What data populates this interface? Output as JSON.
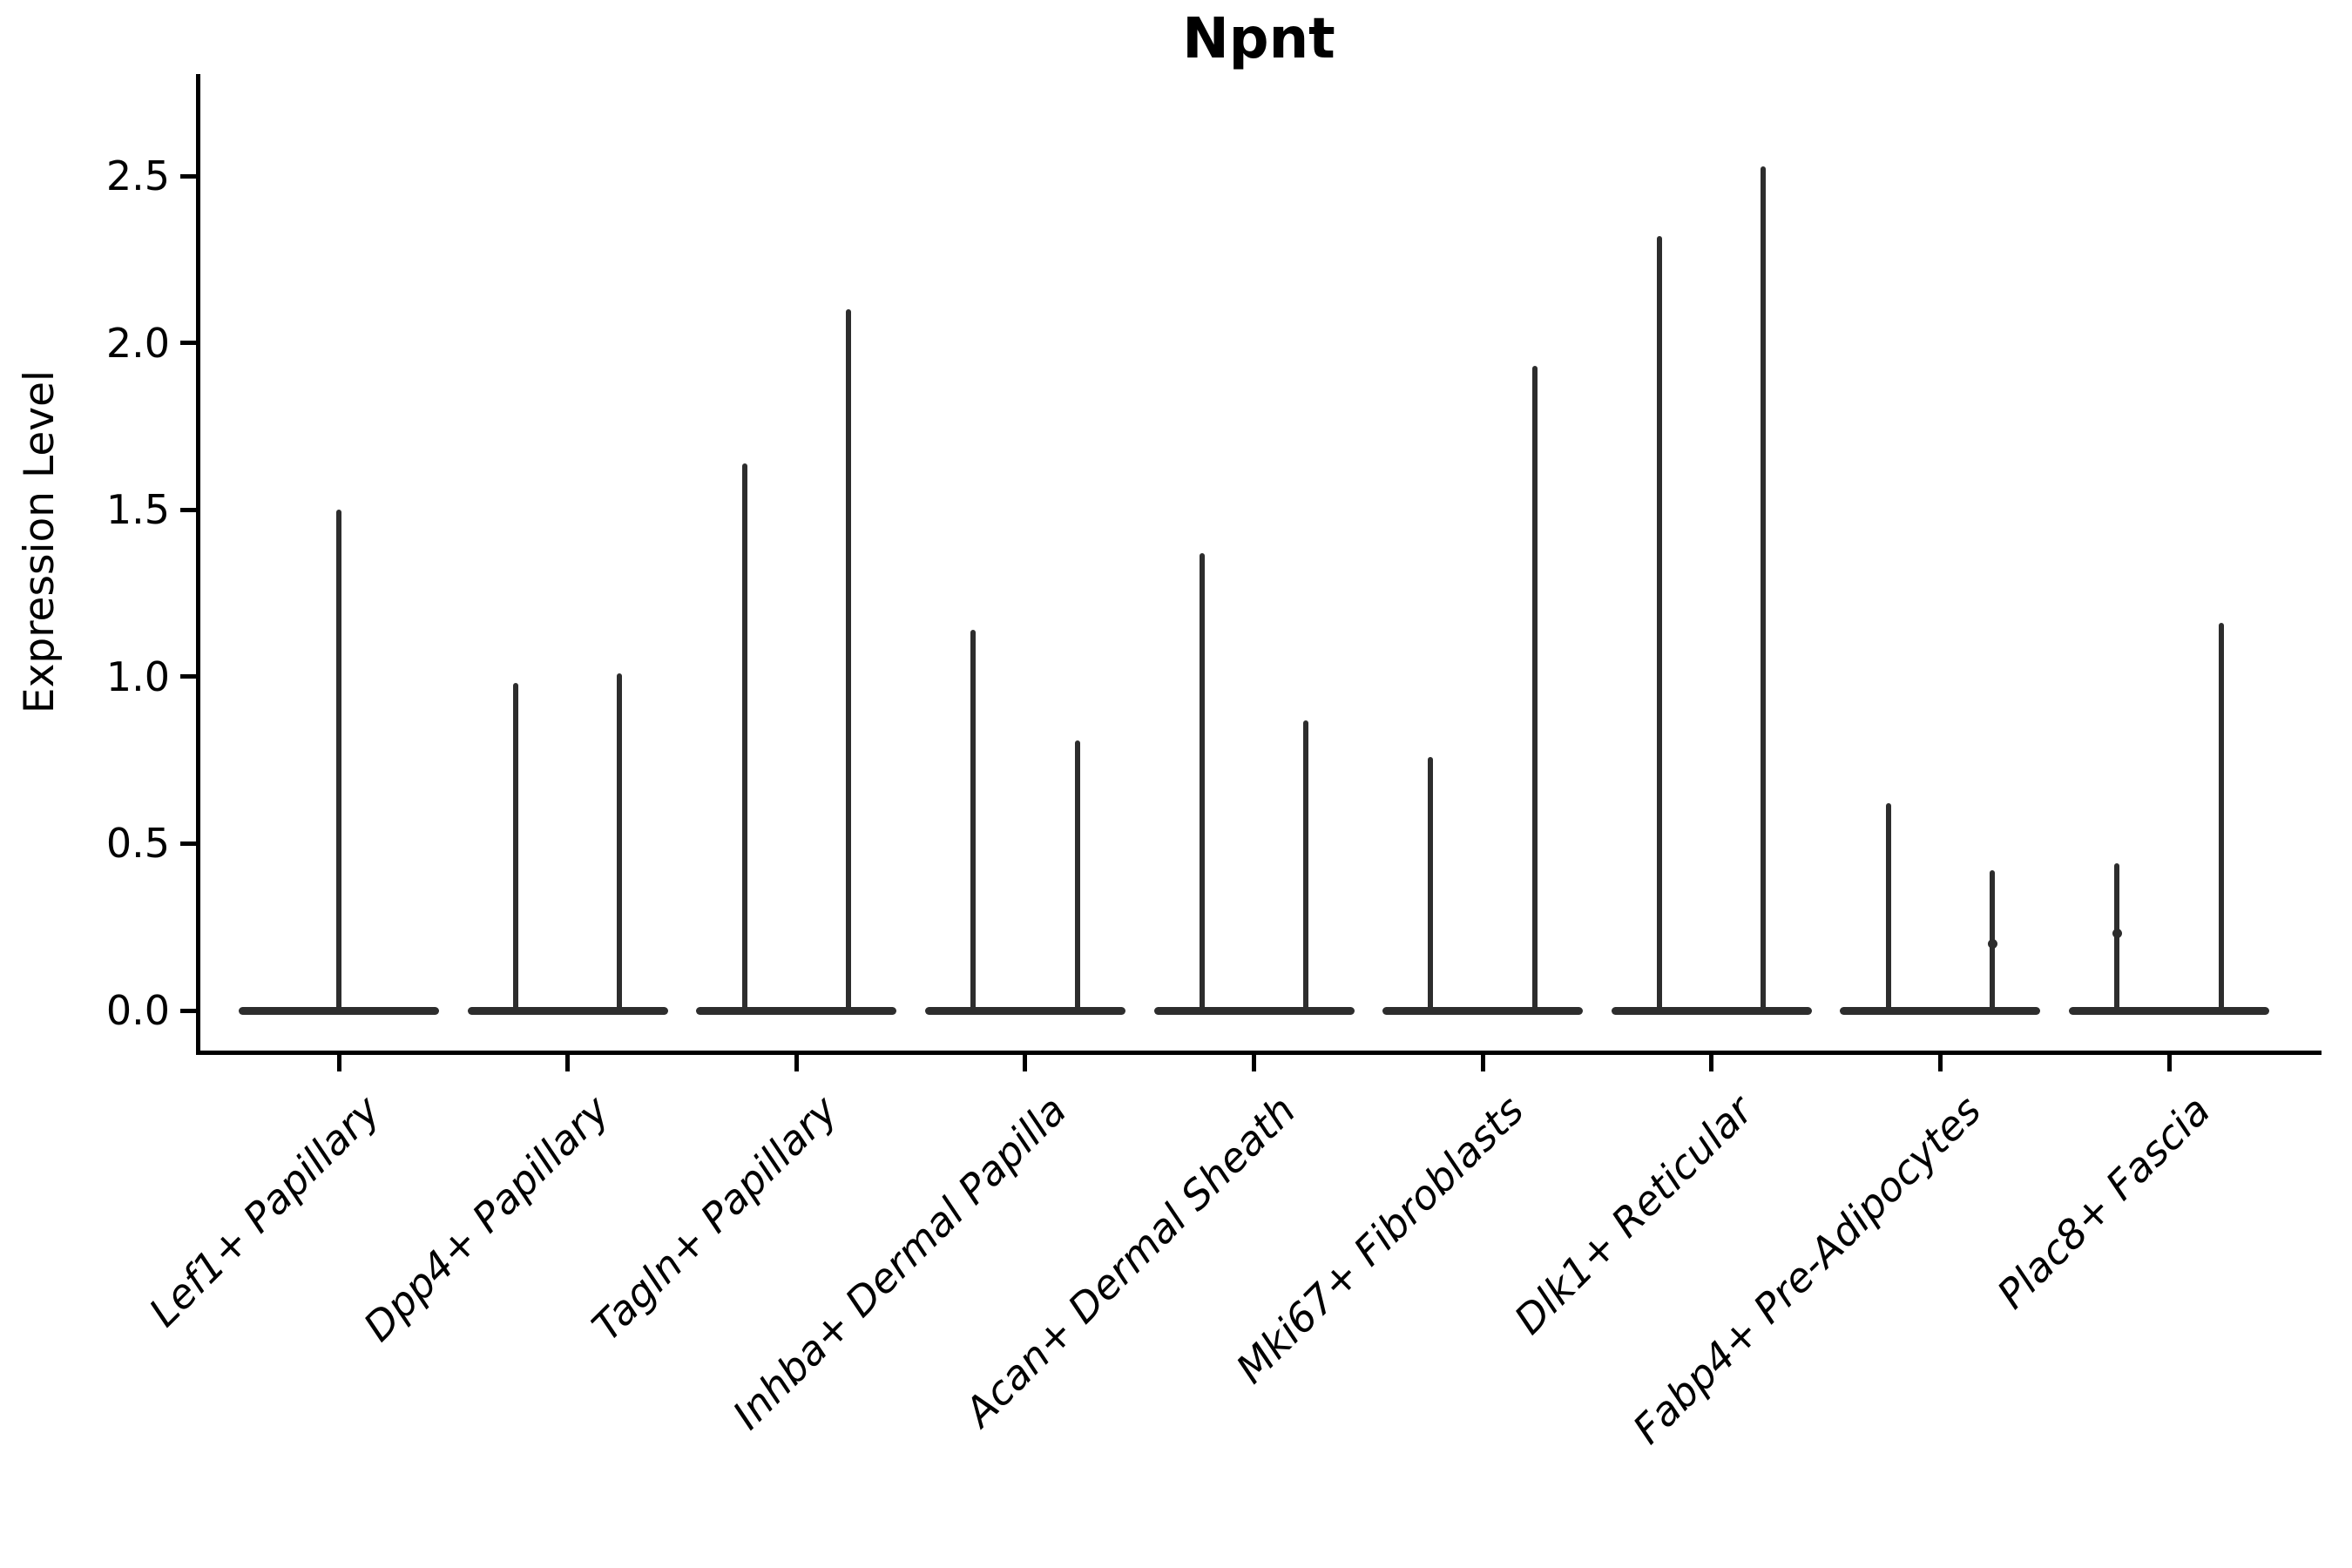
{
  "title": "Npnt",
  "chart_data": {
    "type": "violin",
    "title": "Npnt",
    "subtitle": "",
    "xlabel": "",
    "ylabel": "Expression Level",
    "ylim": [
      0,
      2.65
    ],
    "yticks": [
      "0.0",
      "0.5",
      "1.0",
      "1.5",
      "2.0",
      "2.5"
    ],
    "grid": false,
    "legend": "none",
    "violin_color": "#2d2d2d",
    "axis_color": "#000000",
    "background_color": "#ffffff",
    "description": "Split violin plot of Npnt expression; each cluster shows narrow spike violins rising from a flat zero-density base, spike top = max expression",
    "groups": [
      {
        "label": "Lef1+ Papillary",
        "violins": [
          {
            "max": 1.5,
            "knots": []
          }
        ]
      },
      {
        "label": "Dpp4+ Papillary",
        "violins": [
          {
            "max": 0.98,
            "knots": []
          },
          {
            "max": 1.01,
            "knots": []
          }
        ]
      },
      {
        "label": "Tagln+ Papillary",
        "violins": [
          {
            "max": 1.64,
            "knots": []
          },
          {
            "max": 2.1,
            "knots": []
          }
        ]
      },
      {
        "label": "Inhba+ Dermal Papilla",
        "violins": [
          {
            "max": 1.14,
            "knots": []
          },
          {
            "max": 0.81,
            "knots": []
          }
        ]
      },
      {
        "label": "Acan+ Dermal Sheath",
        "violins": [
          {
            "max": 1.37,
            "knots": []
          },
          {
            "max": 0.87,
            "knots": []
          }
        ]
      },
      {
        "label": "Mki67+ Fibroblasts",
        "violins": [
          {
            "max": 0.76,
            "knots": []
          },
          {
            "max": 1.93,
            "knots": []
          }
        ]
      },
      {
        "label": "Dlk1+ Reticular",
        "violins": [
          {
            "max": 2.32,
            "knots": []
          },
          {
            "max": 2.53,
            "knots": []
          }
        ]
      },
      {
        "label": "Fabp4+ Pre-Adipocytes",
        "violins": [
          {
            "max": 0.62,
            "knots": []
          },
          {
            "max": 0.42,
            "knots": [
              0.2
            ]
          }
        ]
      },
      {
        "label": "Plac8+ Fascia",
        "violins": [
          {
            "max": 0.44,
            "knots": [
              0.23
            ]
          },
          {
            "max": 1.16,
            "knots": []
          }
        ]
      }
    ]
  }
}
